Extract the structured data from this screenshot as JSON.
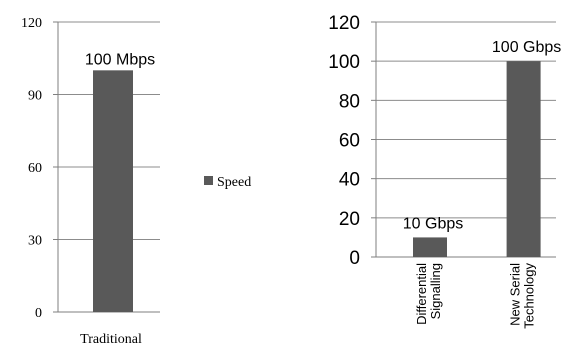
{
  "chart_data": [
    {
      "type": "bar",
      "categories": [
        "Traditional"
      ],
      "values": [
        100
      ],
      "data_labels": [
        "100 Mbps"
      ],
      "ylim": [
        0,
        120
      ],
      "yticks": [
        "0",
        "30",
        "60",
        "90",
        "120"
      ],
      "grid": true,
      "bar_color": "#595959",
      "legend": {
        "position": "right",
        "entries": [
          {
            "label": "Speed",
            "color": "#595959"
          }
        ]
      }
    },
    {
      "type": "bar",
      "categories": [
        "Differential Signalling",
        "New Serial Technology"
      ],
      "category_lines": [
        [
          "Differential",
          "Signalling"
        ],
        [
          "New Serial",
          "Technology"
        ]
      ],
      "values": [
        10,
        100
      ],
      "data_labels": [
        "10 Gbps",
        "100 Gbps"
      ],
      "ylim": [
        0,
        120
      ],
      "yticks": [
        "0",
        "20",
        "40",
        "60",
        "80",
        "100",
        "120"
      ],
      "grid": true,
      "bar_color": "#595959"
    }
  ]
}
